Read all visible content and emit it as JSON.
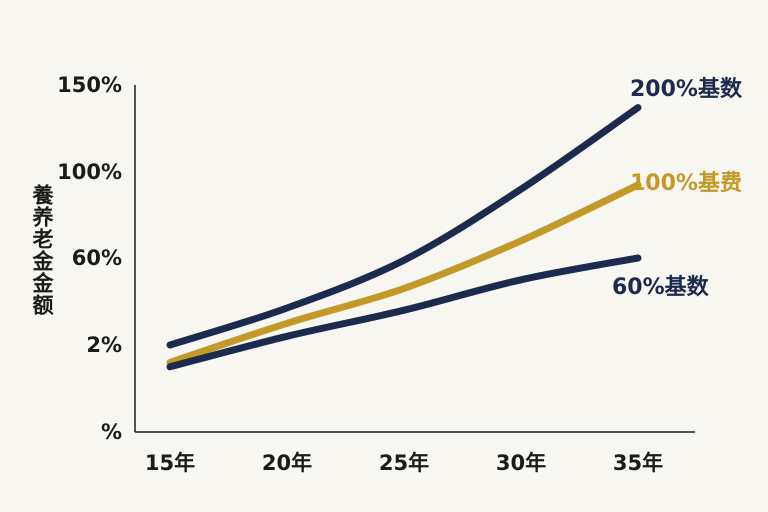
{
  "chart_data": {
    "type": "line",
    "ylabel": "養养老金金额",
    "x": [
      15,
      20,
      25,
      30,
      35
    ],
    "x_tick_labels": [
      "15年",
      "20年",
      "25年",
      "30年",
      "35年"
    ],
    "y_tick_labels": [
      "%",
      "2%",
      "60%",
      "100%",
      "150%"
    ],
    "ylim": [
      0,
      150
    ],
    "grid": false,
    "series": [
      {
        "name": "200%基数",
        "color": "#1c2b4d",
        "values": [
          20,
          37,
          59,
          92,
          137
        ]
      },
      {
        "name": "100%基费",
        "color": "#c39a2a",
        "values": [
          16,
          30,
          46,
          68,
          94
        ]
      },
      {
        "name": "60%基数",
        "color": "#1c2b4d",
        "values": [
          15,
          24,
          36,
          50,
          60
        ]
      }
    ]
  }
}
